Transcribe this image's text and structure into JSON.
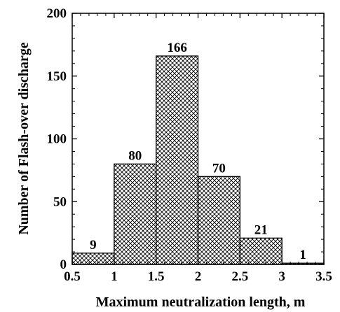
{
  "chart_data": {
    "type": "bar",
    "bins": [
      {
        "from": 0.5,
        "to": 1.0,
        "value": 9,
        "label": "9"
      },
      {
        "from": 1.0,
        "to": 1.5,
        "value": 80,
        "label": "80"
      },
      {
        "from": 1.5,
        "to": 2.0,
        "value": 166,
        "label": "166"
      },
      {
        "from": 2.0,
        "to": 2.5,
        "value": 70,
        "label": "70"
      },
      {
        "from": 2.5,
        "to": 3.0,
        "value": 21,
        "label": "21"
      },
      {
        "from": 3.0,
        "to": 3.5,
        "value": 1,
        "label": "1"
      }
    ],
    "xlabel": "Maximum neutralization length, m",
    "ylabel": "Number of Flash-over discharge",
    "xlim": [
      0.5,
      3.5
    ],
    "ylim": [
      0,
      200
    ],
    "xticks": [
      "0.5",
      "1",
      "1.5",
      "2",
      "2.5",
      "3",
      "3.5"
    ],
    "yticks": [
      "0",
      "50",
      "100",
      "150",
      "200"
    ],
    "bar_fill": "crosshatch",
    "grid": false
  }
}
